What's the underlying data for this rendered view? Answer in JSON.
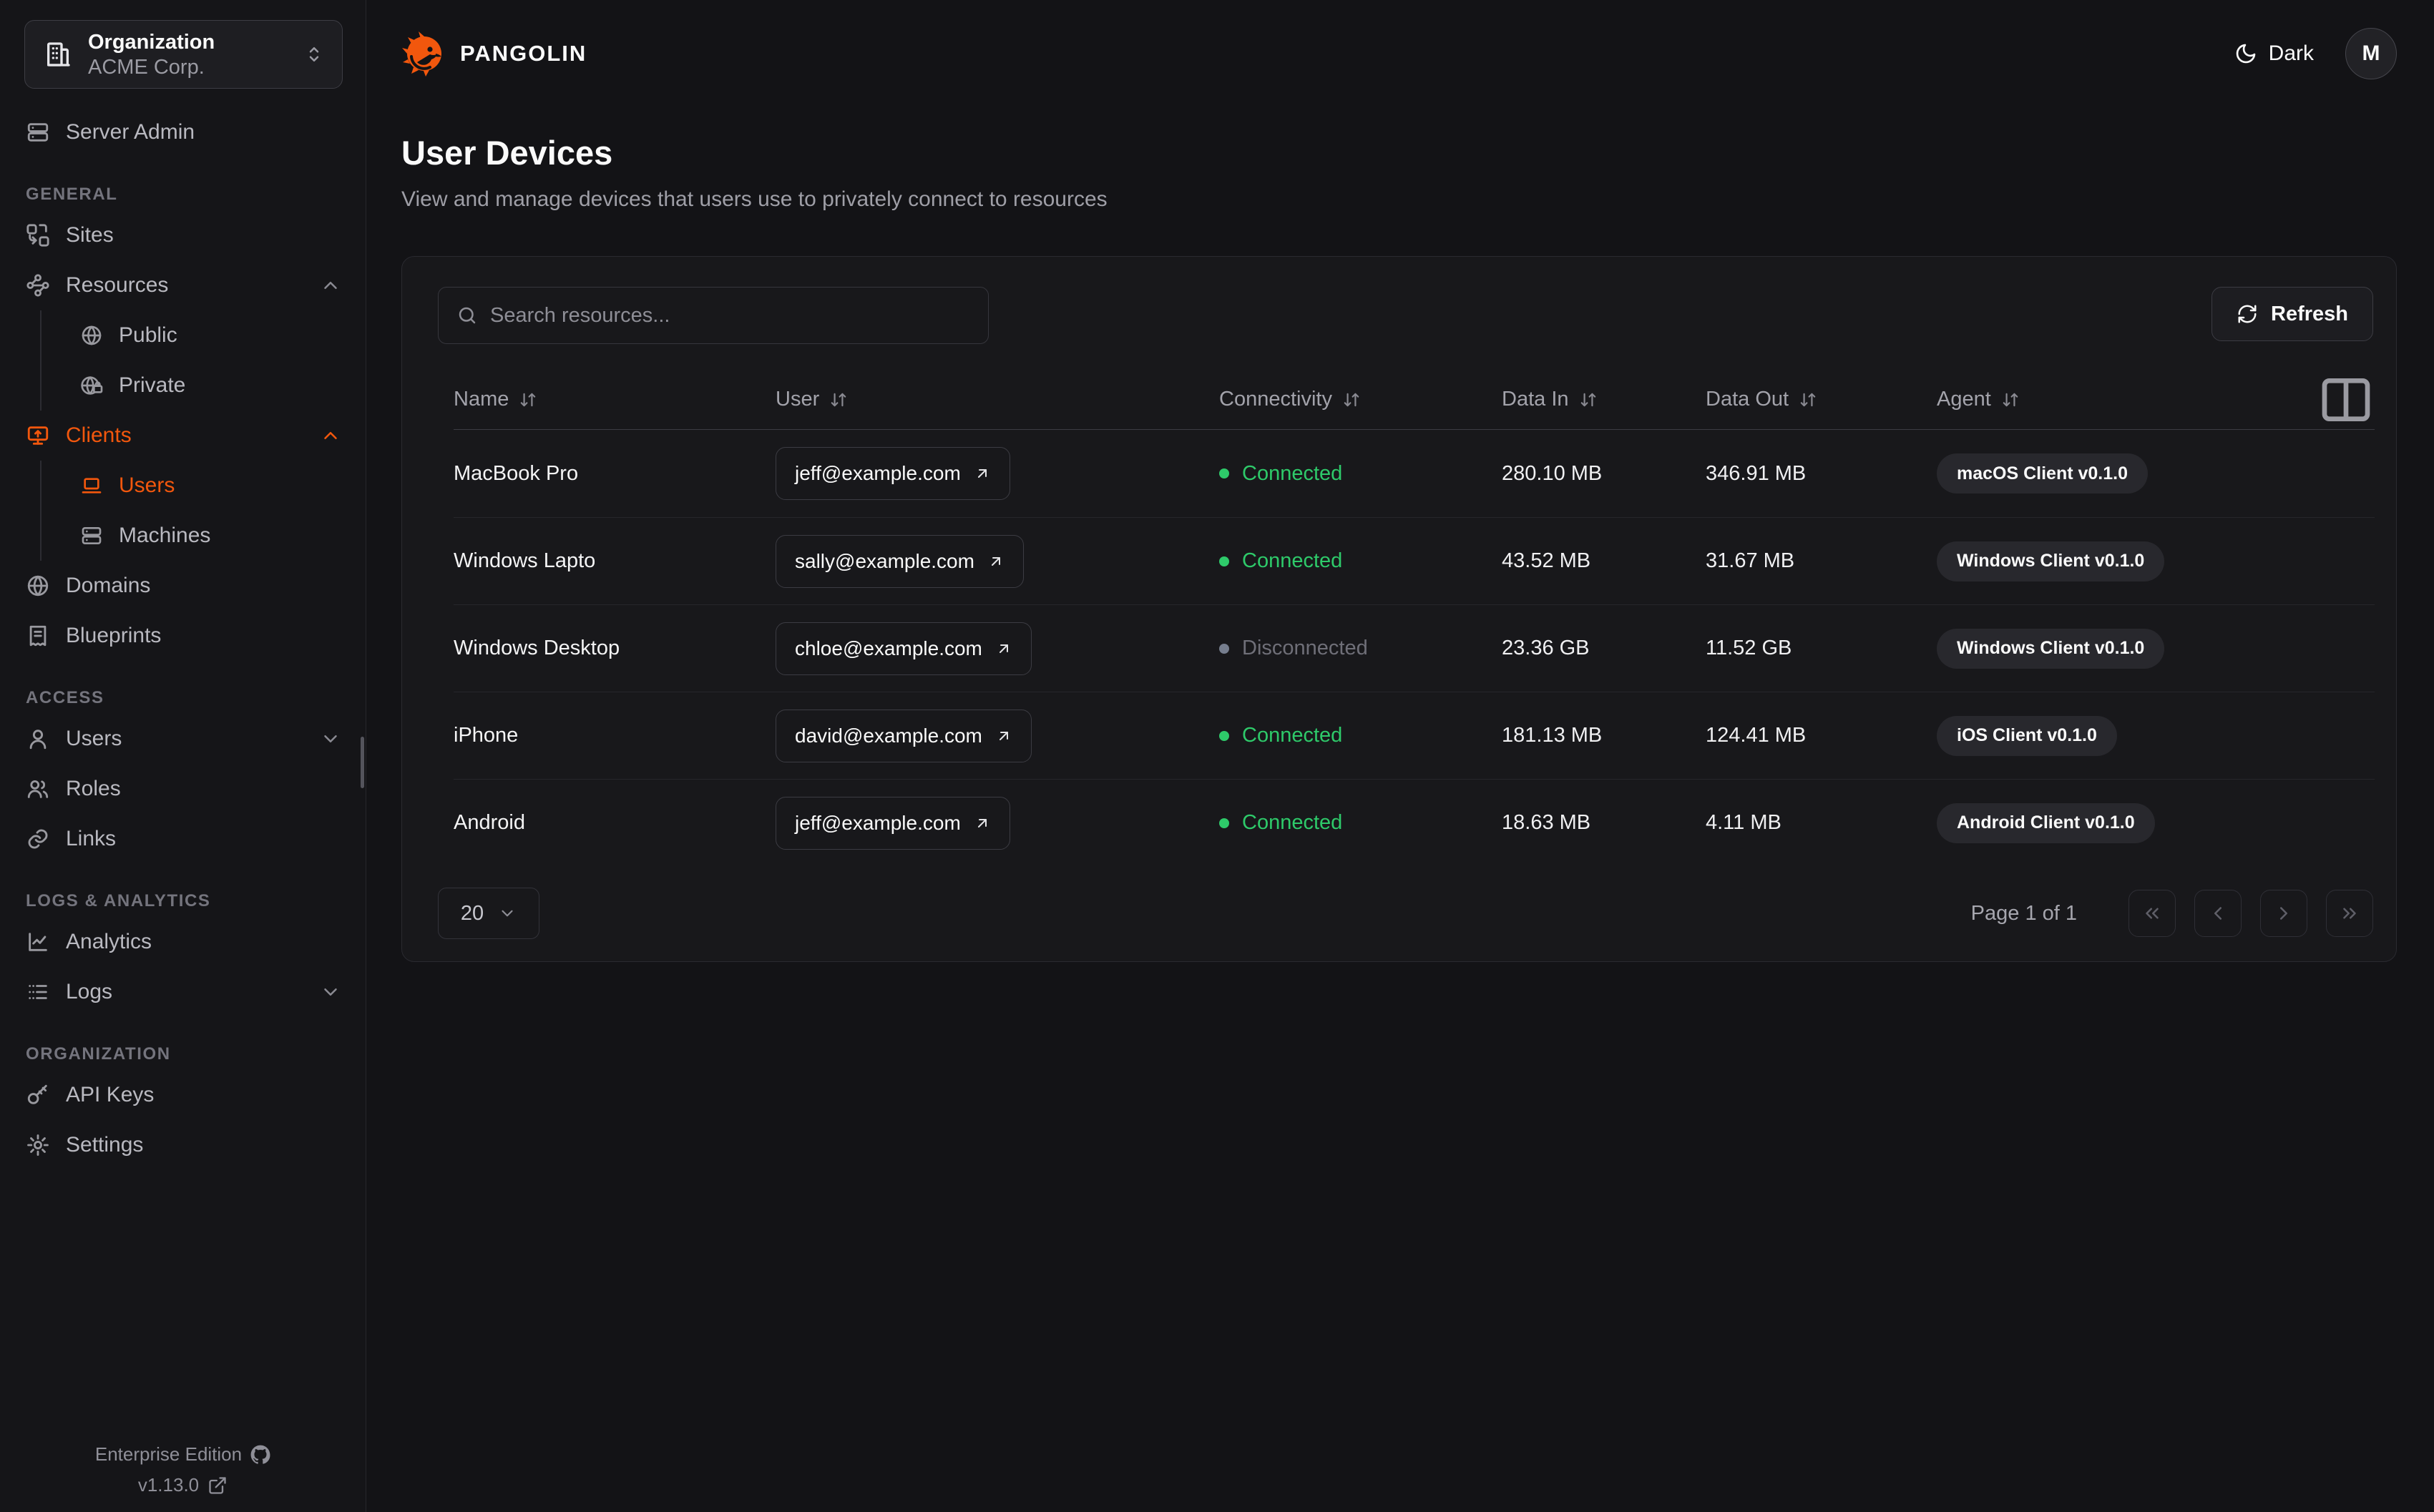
{
  "theme": {
    "accent": "#F2570D",
    "green": "#2ECA6A",
    "disconnected_dot": "#767E8E"
  },
  "sidebar": {
    "org": {
      "label": "Organization",
      "value": "ACME Corp.",
      "icon": "building-icon",
      "chevron_icon": "up-down-icon"
    },
    "sections": [
      {
        "label": "",
        "items": [
          {
            "label": "Server Admin",
            "icon": "server-icon"
          }
        ]
      },
      {
        "label": "GENERAL",
        "items": [
          {
            "label": "Sites",
            "icon": "sites-icon"
          },
          {
            "label": "Resources",
            "icon": "waypoints-icon",
            "chevron": "up",
            "children": [
              {
                "label": "Public",
                "icon": "globe-icon"
              },
              {
                "label": "Private",
                "icon": "globe-lock-icon"
              }
            ]
          },
          {
            "label": "Clients",
            "icon": "monitor-up-icon",
            "chevron": "up",
            "active": true,
            "children": [
              {
                "label": "Users",
                "icon": "laptop-icon",
                "active": true
              },
              {
                "label": "Machines",
                "icon": "server-icon"
              }
            ]
          },
          {
            "label": "Domains",
            "icon": "globe-icon"
          },
          {
            "label": "Blueprints",
            "icon": "receipt-icon"
          }
        ]
      },
      {
        "label": "ACCESS",
        "items": [
          {
            "label": "Users",
            "icon": "user-icon",
            "chevron": "down"
          },
          {
            "label": "Roles",
            "icon": "users-icon"
          },
          {
            "label": "Links",
            "icon": "link-icon"
          }
        ]
      },
      {
        "label": "LOGS & ANALYTICS",
        "items": [
          {
            "label": "Analytics",
            "icon": "chart-icon"
          },
          {
            "label": "Logs",
            "icon": "list-icon",
            "chevron": "down"
          }
        ]
      },
      {
        "label": "ORGANIZATION",
        "items": [
          {
            "label": "API Keys",
            "icon": "key-icon"
          },
          {
            "label": "Settings",
            "icon": "gear-icon"
          }
        ]
      }
    ],
    "footer": {
      "edition": "Enterprise Edition",
      "edition_icon": "github-icon",
      "version": "v1.13.0",
      "version_icon": "external-link-icon"
    }
  },
  "header": {
    "brand": "PANGOLIN",
    "theme_toggle_label": "Dark",
    "theme_toggle_icon": "moon-icon",
    "avatar_initial": "M"
  },
  "page": {
    "title": "User Devices",
    "subtitle": "View and manage devices that users use to privately connect to resources"
  },
  "toolbar": {
    "search_placeholder": "Search resources...",
    "refresh_label": "Refresh"
  },
  "table": {
    "columns": [
      "Name",
      "User",
      "Connectivity",
      "Data In",
      "Data Out",
      "Agent"
    ],
    "rows": [
      {
        "name": "MacBook Pro",
        "user": "jeff@example.com",
        "status": "connected",
        "status_label": "Connected",
        "data_in": "280.10 MB",
        "data_out": "346.91 MB",
        "agent": "macOS Client v0.1.0"
      },
      {
        "name": "Windows Lapto",
        "user": "sally@example.com",
        "status": "connected",
        "status_label": "Connected",
        "data_in": "43.52 MB",
        "data_out": "31.67 MB",
        "agent": "Windows Client v0.1.0"
      },
      {
        "name": "Windows Desktop",
        "user": "chloe@example.com",
        "status": "disconnected",
        "status_label": "Disconnected",
        "data_in": "23.36 GB",
        "data_out": "11.52 GB",
        "agent": "Windows Client v0.1.0"
      },
      {
        "name": "iPhone",
        "user": "david@example.com",
        "status": "connected",
        "status_label": "Connected",
        "data_in": "181.13 MB",
        "data_out": "124.41 MB",
        "agent": "iOS Client v0.1.0"
      },
      {
        "name": "Android",
        "user": "jeff@example.com",
        "status": "connected",
        "status_label": "Connected",
        "data_in": "18.63 MB",
        "data_out": "4.11 MB",
        "agent": "Android Client v0.1.0"
      }
    ]
  },
  "pagination": {
    "page_size": "20",
    "status": "Page 1 of 1"
  }
}
